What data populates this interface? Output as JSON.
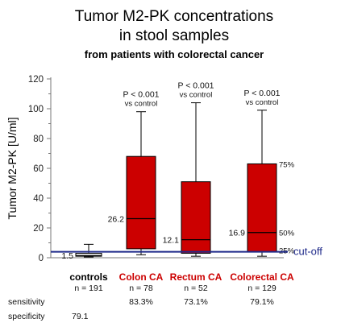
{
  "chart_data": {
    "type": "box",
    "title": "Tumor M2-PK concentrations",
    "title_line2": "in stool samples",
    "subtitle": "from patients with colorectal cancer",
    "ylabel": "Tumor M2-PK   [U/ml]",
    "ylim": [
      0,
      120
    ],
    "yticks": [
      "0",
      "20",
      "40",
      "60",
      "80",
      "100",
      "120"
    ],
    "grid": false,
    "colors": {
      "box_fill": "#cc0000",
      "control_box": "#ffffff",
      "cutoff_line": "#1f2a8a",
      "whisker": "#000000"
    },
    "cutoff": {
      "value": 4,
      "label": "cut-off"
    },
    "quartile_labels": {
      "q3": "75%",
      "median": "50%",
      "q1": "25%"
    },
    "row_labels": {
      "sensitivity": "sensitivity",
      "specificity": "specificity"
    },
    "groups": [
      {
        "name": "controls",
        "name_color": "#000000",
        "n": "n = 191",
        "min": 0.5,
        "q1": 1,
        "median": 1.5,
        "q3": 3,
        "max": 9,
        "median_label": "1.5",
        "pvalue": "",
        "pvalue_sub": "",
        "sensitivity": "",
        "specificity": "79.1"
      },
      {
        "name": "Colon CA",
        "name_color": "#cc0000",
        "n": "n = 78",
        "min": 2,
        "q1": 6,
        "median": 26.2,
        "q3": 68,
        "max": 98,
        "median_label": "26.2",
        "pvalue": "P < 0.001",
        "pvalue_sub": "vs control",
        "sensitivity": "83.3%",
        "specificity": ""
      },
      {
        "name": "Rectum CA",
        "name_color": "#cc0000",
        "n": "n = 52",
        "min": 1,
        "q1": 3,
        "median": 12.1,
        "q3": 51,
        "max": 104,
        "median_label": "12.1",
        "pvalue": "P < 0.001",
        "pvalue_sub": "vs control",
        "sensitivity": "73.1%",
        "specificity": ""
      },
      {
        "name": "Colorectal CA",
        "name_color": "#cc0000",
        "n": "n = 129",
        "min": 1,
        "q1": 4,
        "median": 16.9,
        "q3": 63,
        "max": 99,
        "median_label": "16.9",
        "pvalue": "P < 0.001",
        "pvalue_sub": "vs control",
        "sensitivity": "79.1%",
        "specificity": ""
      }
    ]
  }
}
